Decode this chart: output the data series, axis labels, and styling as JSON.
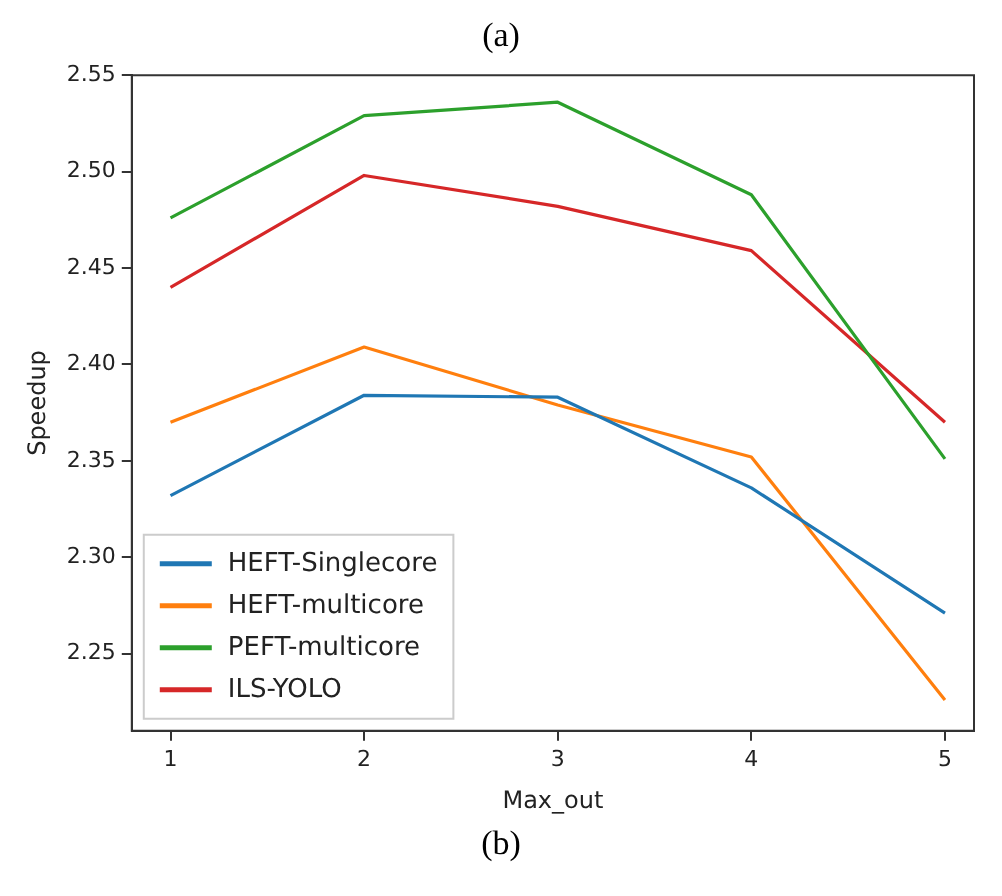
{
  "chart_data": {
    "type": "line",
    "title": "(a)",
    "annotations": [
      "(b)"
    ],
    "xlabel": "Max_out",
    "ylabel": "Speedup",
    "x": [
      1,
      2,
      3,
      4,
      5
    ],
    "xlim": [
      0.8,
      5.15
    ],
    "xticks": [
      1,
      2,
      3,
      4,
      5
    ],
    "ylim": [
      2.21,
      2.55
    ],
    "yticks": [
      2.25,
      {
        "value": 2.3,
        "label": "2.30"
      },
      2.35,
      {
        "value": 2.4,
        "label": "2.40"
      },
      2.45,
      {
        "value": 2.5,
        "label": "2.50"
      },
      2.55
    ],
    "grid": false,
    "legend": "bottom left",
    "marker": "none",
    "line_style": "solid",
    "series": [
      {
        "name": "HEFT-Singlecore",
        "color": "#1f77b4",
        "values": [
          2.332,
          2.384,
          2.383,
          2.336,
          2.271
        ]
      },
      {
        "name": "HEFT-multicore",
        "color": "#ff7f0e",
        "values": [
          2.37,
          2.409,
          2.379,
          2.352,
          2.226
        ]
      },
      {
        "name": "PEFT-multicore",
        "color": "#2ca02c",
        "values": [
          2.476,
          2.529,
          2.536,
          2.488,
          2.351
        ]
      },
      {
        "name": "ILS-YOLO",
        "color": "#d62728",
        "values": [
          2.44,
          2.498,
          2.482,
          2.459,
          2.37
        ]
      }
    ]
  }
}
